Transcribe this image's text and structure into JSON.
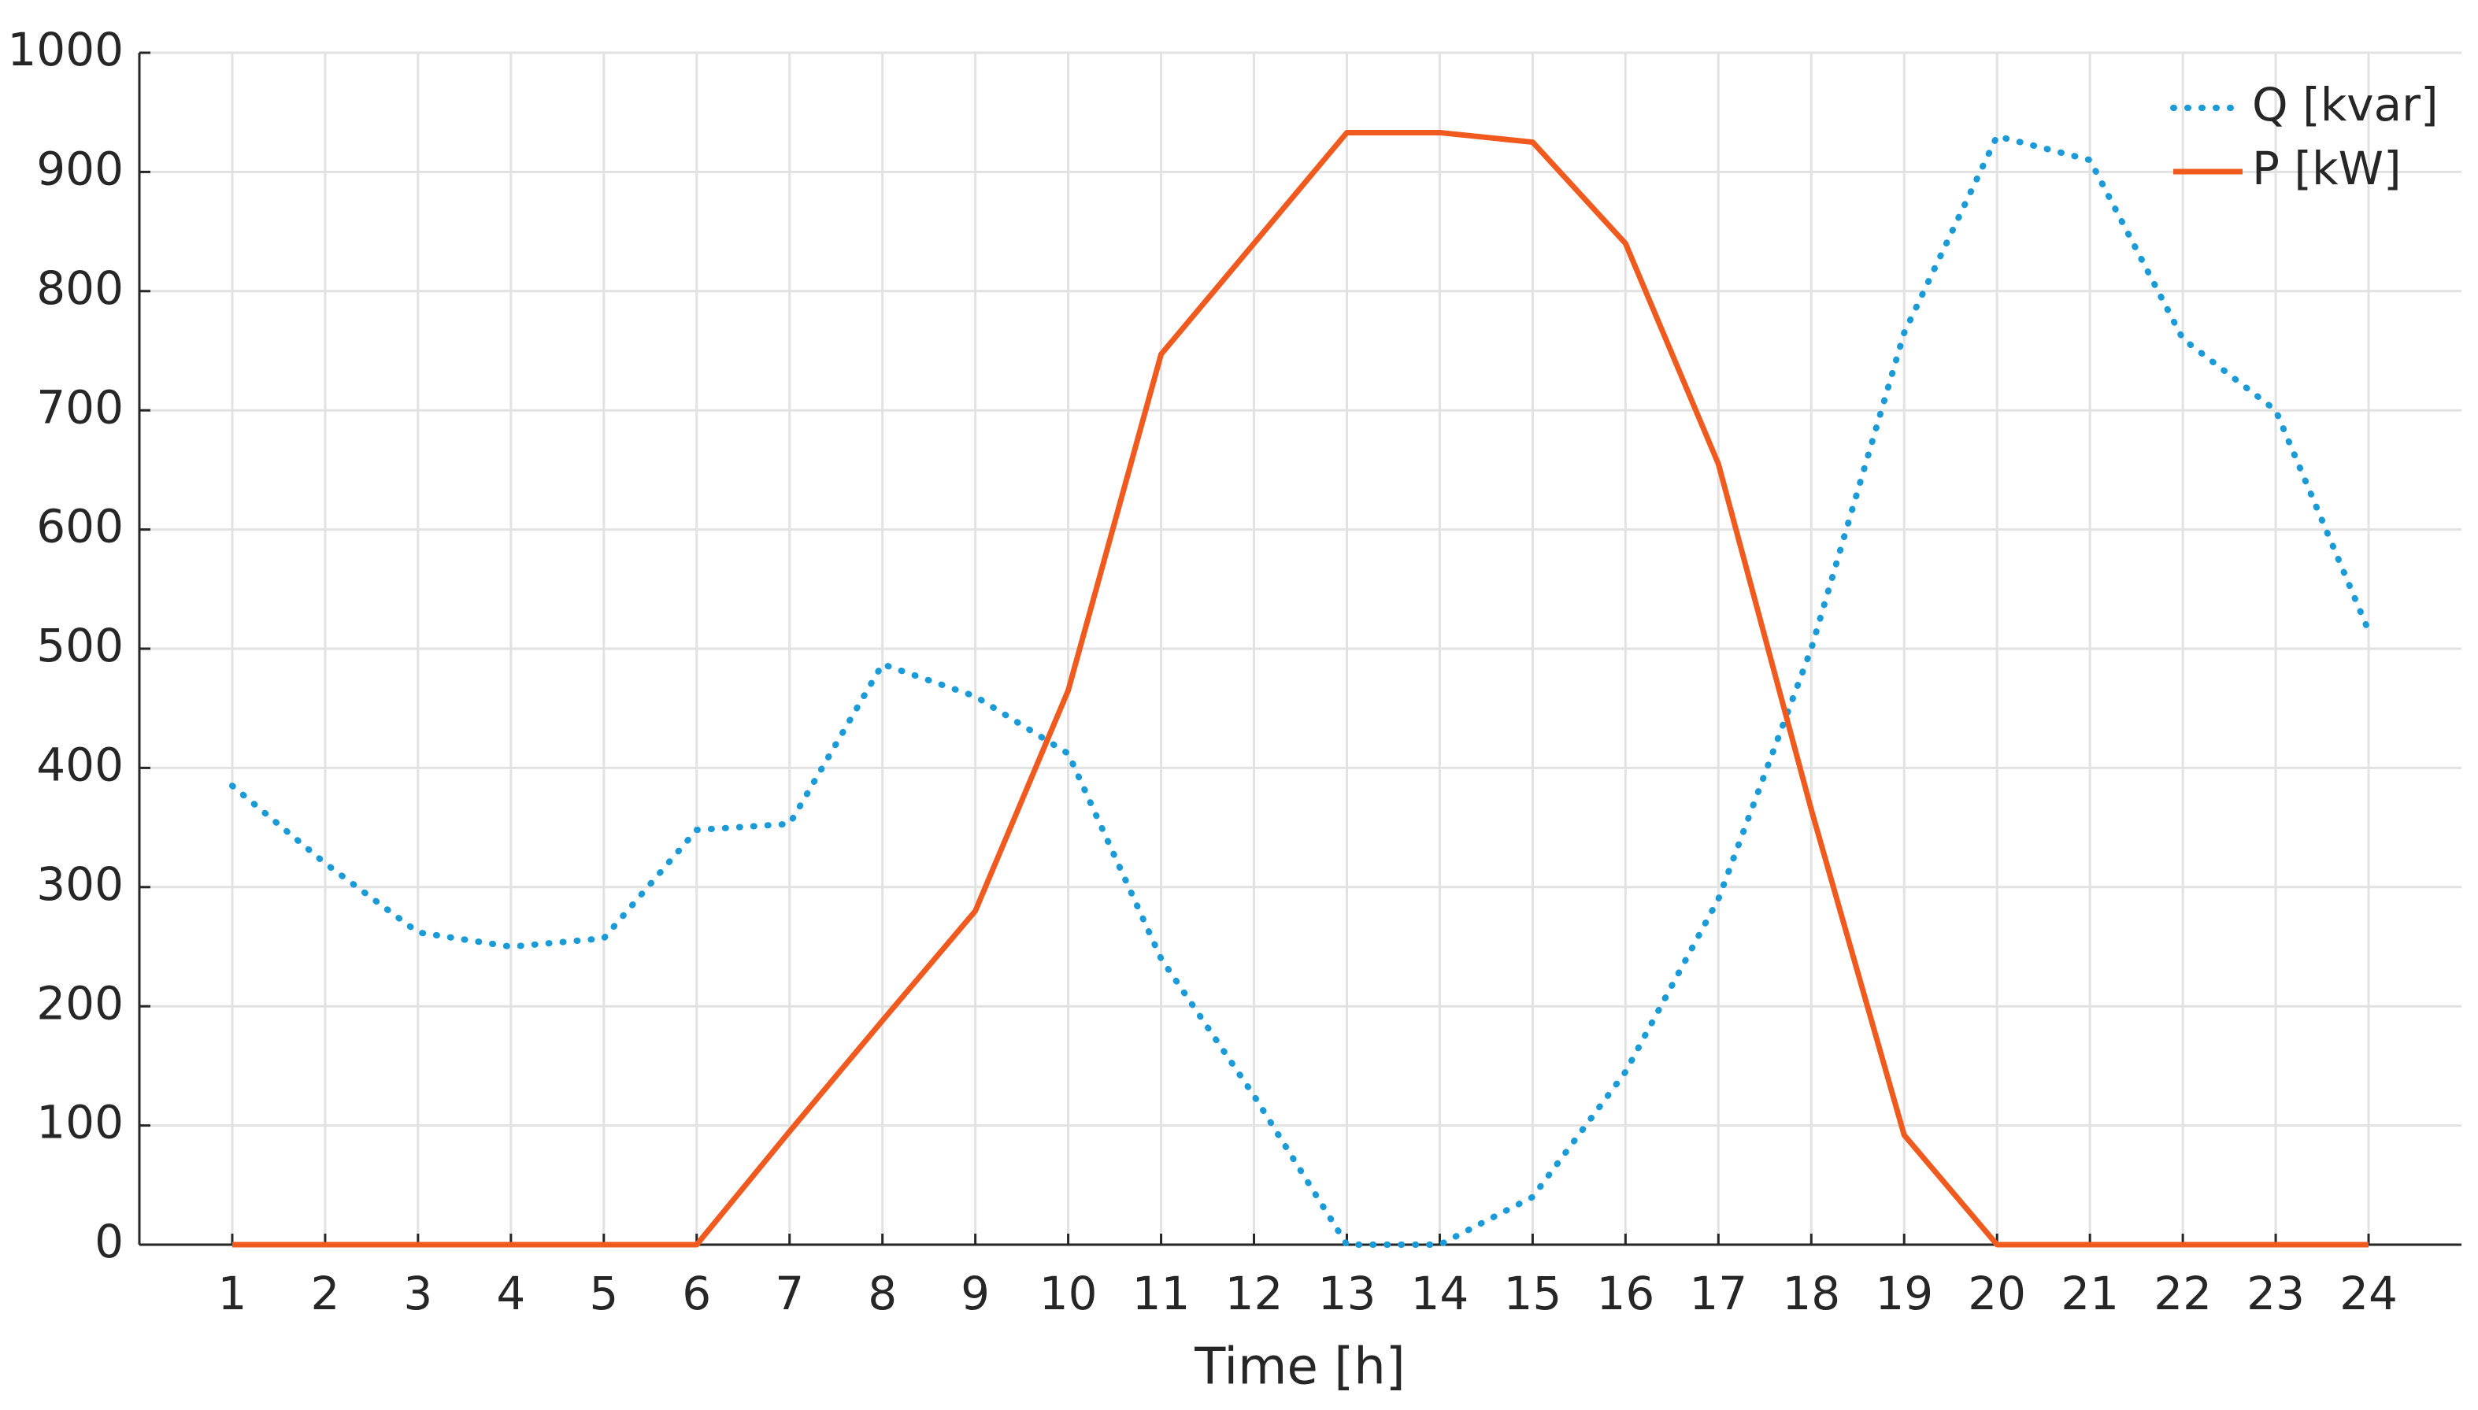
{
  "chart_data": {
    "type": "line",
    "xlabel": "Time [h]",
    "x": [
      1,
      2,
      3,
      4,
      5,
      6,
      7,
      8,
      9,
      10,
      11,
      12,
      13,
      14,
      15,
      16,
      17,
      18,
      19,
      20,
      21,
      22,
      23,
      24
    ],
    "series": [
      {
        "name": "Q [kvar]",
        "color": "#1a9bd7",
        "style": "dotted",
        "values": [
          385,
          320,
          262,
          250,
          257,
          348,
          353,
          487,
          460,
          412,
          240,
          125,
          0,
          0,
          40,
          145,
          290,
          500,
          765,
          930,
          910,
          760,
          700,
          515
        ]
      },
      {
        "name": "P [kW]",
        "color": "#f05a1e",
        "style": "solid",
        "values": [
          0,
          0,
          0,
          0,
          0,
          0,
          95,
          188,
          280,
          465,
          747,
          840,
          933,
          933,
          925,
          840,
          655,
          365,
          92,
          0,
          0,
          0,
          0,
          0
        ]
      }
    ],
    "xlim": [
      0,
      25
    ],
    "ylim": [
      0,
      1000
    ],
    "xticks": [
      1,
      2,
      3,
      4,
      5,
      6,
      7,
      8,
      9,
      10,
      11,
      12,
      13,
      14,
      15,
      16,
      17,
      18,
      19,
      20,
      21,
      22,
      23,
      24
    ],
    "yticks": [
      0,
      100,
      200,
      300,
      400,
      500,
      600,
      700,
      800,
      900,
      1000
    ],
    "grid": true,
    "legend": "upper right"
  }
}
